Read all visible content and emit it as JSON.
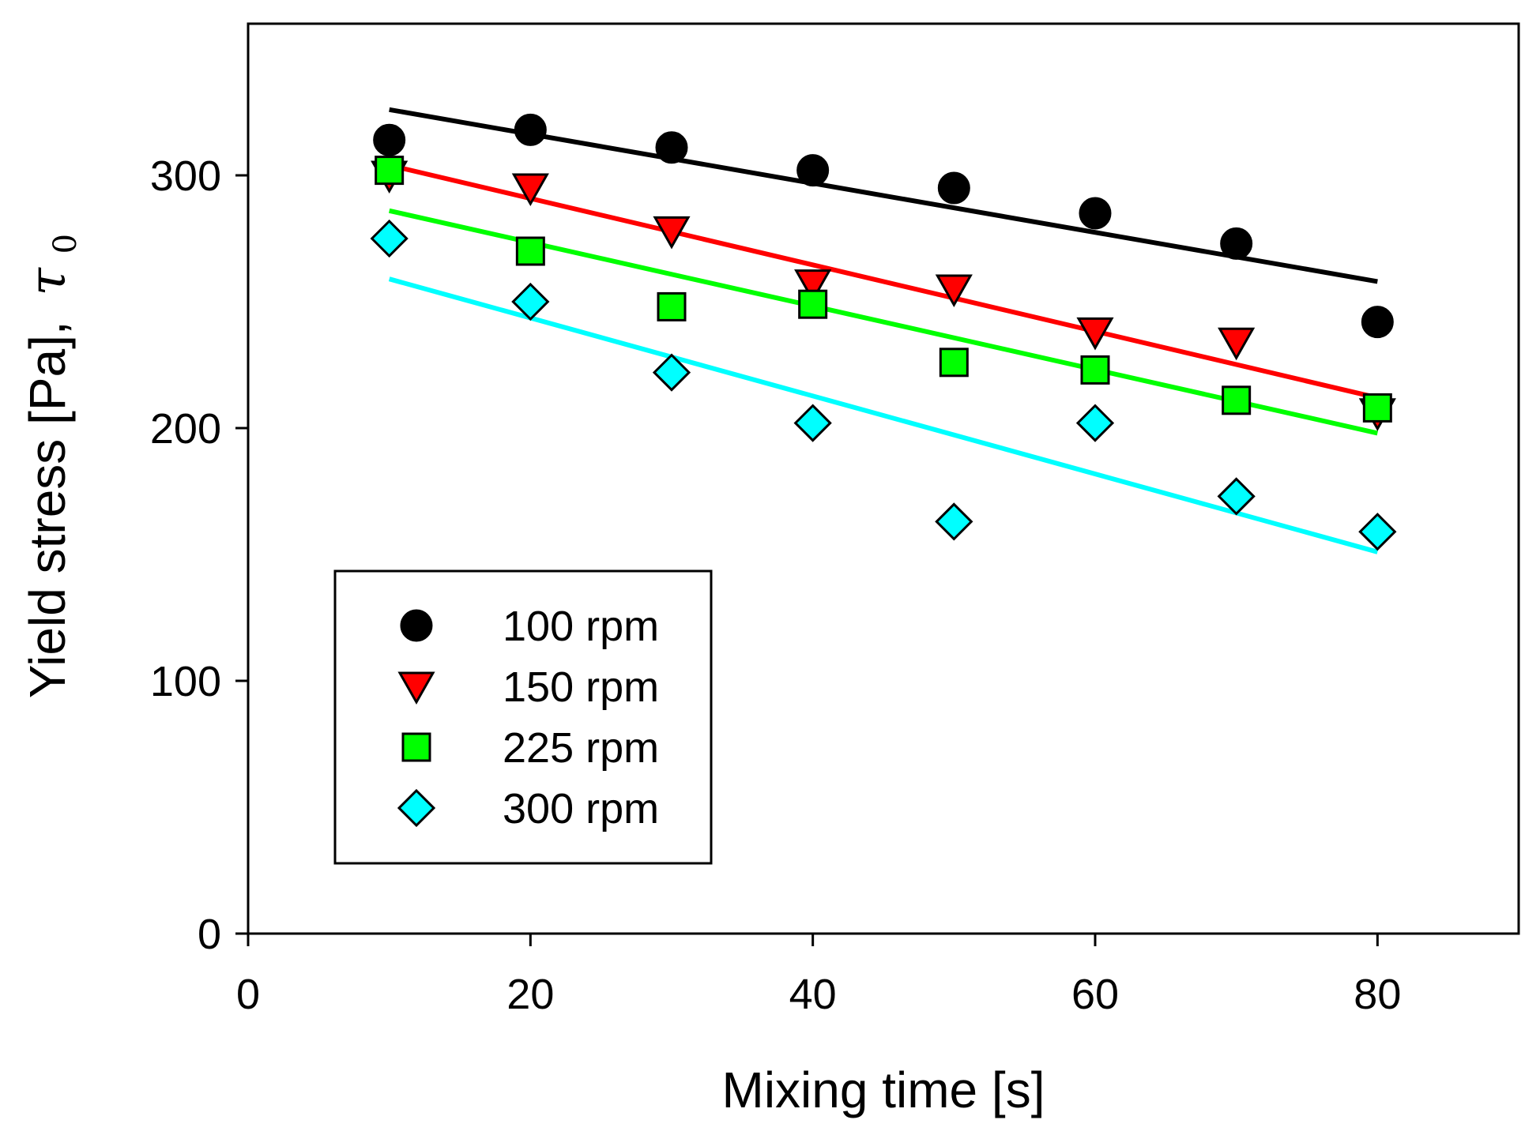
{
  "chart_data": {
    "type": "scatter",
    "title": "",
    "xlabel": "Mixing time [s]",
    "ylabel": "Yield stress [Pa],",
    "ylabel_symbol": "τ",
    "ylabel_subscript": "0",
    "xlim": [
      0,
      90
    ],
    "ylim": [
      0,
      360
    ],
    "xticks": [
      0,
      20,
      40,
      60,
      80
    ],
    "yticks": [
      0,
      100,
      200,
      300
    ],
    "grid": false,
    "legend_position": "bottom-left",
    "x": [
      10,
      20,
      30,
      40,
      50,
      60,
      70,
      80
    ],
    "series": [
      {
        "name": "100 rpm",
        "marker": "circle",
        "color": "#000000",
        "line_color": "#000000",
        "values": [
          314,
          318,
          311,
          302,
          295,
          285,
          273,
          242
        ],
        "fit": [
          [
            10,
            326
          ],
          [
            80,
            258
          ]
        ]
      },
      {
        "name": "150 rpm",
        "marker": "triangle-down",
        "color": "#ff0000",
        "line_color": "#ff0000",
        "values": [
          300,
          295,
          278,
          257,
          255,
          238,
          234,
          206
        ],
        "fit": [
          [
            10,
            304
          ],
          [
            80,
            212
          ]
        ]
      },
      {
        "name": "225 rpm",
        "marker": "square",
        "color": "#00ff00",
        "line_color": "#00ff00",
        "values": [
          302,
          270,
          248,
          249,
          226,
          223,
          211,
          208
        ],
        "fit": [
          [
            10,
            286
          ],
          [
            80,
            198
          ]
        ]
      },
      {
        "name": "300 rpm",
        "marker": "diamond",
        "color": "#00ffff",
        "line_color": "#00ffff",
        "values": [
          275,
          250,
          222,
          202,
          163,
          202,
          173,
          159
        ],
        "fit": [
          [
            10,
            259
          ],
          [
            80,
            151
          ]
        ]
      }
    ]
  }
}
